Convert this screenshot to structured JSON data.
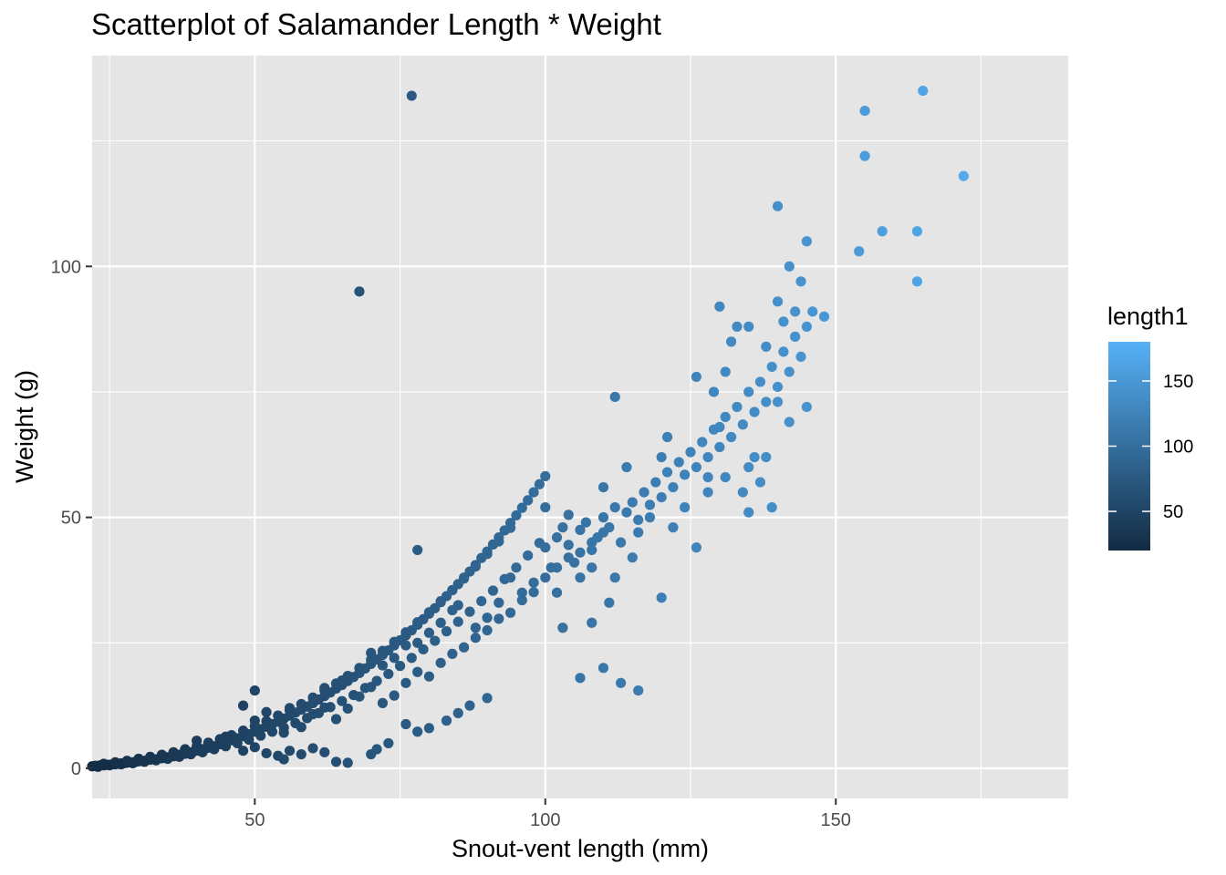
{
  "chart_data": {
    "type": "scatter",
    "title": "Scatterplot of Salamander Length * Weight",
    "xlabel": "Snout-vent length (mm)",
    "ylabel": "Weight (g)",
    "xlim": [
      22,
      190
    ],
    "ylim": [
      -6,
      142
    ],
    "x_ticks": [
      50,
      100,
      150
    ],
    "y_ticks": [
      0,
      50,
      100
    ],
    "x_tick_labels": [
      "50",
      "100",
      "150"
    ],
    "y_tick_labels": [
      "0",
      "50",
      "100"
    ],
    "grid": true,
    "panel_background": "#e5e5e5",
    "grid_color": "#ffffff",
    "legend": {
      "title": "length1",
      "position": "right",
      "range": [
        20,
        180
      ],
      "ticks": [
        50,
        100,
        150
      ],
      "tick_labels": [
        "50",
        "100",
        "150"
      ],
      "color_low": "#132b43",
      "color_high": "#56b1f7"
    },
    "points": [
      [
        22,
        0.4
      ],
      [
        22.5,
        0.5
      ],
      [
        23,
        0.5
      ],
      [
        23.5,
        0.6
      ],
      [
        24,
        0.6
      ],
      [
        24.5,
        0.7
      ],
      [
        25,
        0.7
      ],
      [
        25.5,
        0.8
      ],
      [
        26,
        0.8
      ],
      [
        26.5,
        0.9
      ],
      [
        27,
        1.0
      ],
      [
        27.5,
        1.0
      ],
      [
        28,
        1.1
      ],
      [
        28.5,
        1.2
      ],
      [
        29,
        1.2
      ],
      [
        29.5,
        1.3
      ],
      [
        30,
        1.4
      ],
      [
        31,
        1.5
      ],
      [
        32,
        1.7
      ],
      [
        33,
        1.8
      ],
      [
        34,
        2.0
      ],
      [
        35,
        2.2
      ],
      [
        36,
        2.4
      ],
      [
        37,
        2.7
      ],
      [
        38,
        2.9
      ],
      [
        39,
        3.2
      ],
      [
        40,
        3.5
      ],
      [
        41,
        3.8
      ],
      [
        42,
        4.1
      ],
      [
        43,
        4.4
      ],
      [
        44,
        4.8
      ],
      [
        45,
        5.2
      ],
      [
        46,
        5.6
      ],
      [
        47,
        6.0
      ],
      [
        48,
        6.4
      ],
      [
        49,
        6.8
      ],
      [
        50,
        7.3
      ],
      [
        51,
        7.8
      ],
      [
        52,
        8.3
      ],
      [
        53,
        8.8
      ],
      [
        54,
        9.3
      ],
      [
        55,
        9.9
      ],
      [
        56,
        10.5
      ],
      [
        57,
        11.1
      ],
      [
        58,
        11.7
      ],
      [
        59,
        12.3
      ],
      [
        60,
        13.0
      ],
      [
        61,
        13.7
      ],
      [
        62,
        14.4
      ],
      [
        63,
        15.1
      ],
      [
        64,
        15.9
      ],
      [
        65,
        16.6
      ],
      [
        66,
        17.4
      ],
      [
        67,
        18.2
      ],
      [
        68,
        19.0
      ],
      [
        69,
        19.9
      ],
      [
        70,
        20.8
      ],
      [
        71,
        21.7
      ],
      [
        72,
        22.6
      ],
      [
        73,
        23.5
      ],
      [
        74,
        24.5
      ],
      [
        75,
        25.5
      ],
      [
        76,
        26.5
      ],
      [
        77,
        27.5
      ],
      [
        78,
        28.6
      ],
      [
        79,
        29.7
      ],
      [
        80,
        30.8
      ],
      [
        81,
        31.9
      ],
      [
        82,
        33.1
      ],
      [
        83,
        34.3
      ],
      [
        84,
        35.5
      ],
      [
        85,
        36.7
      ],
      [
        86,
        38.0
      ],
      [
        87,
        39.2
      ],
      [
        88,
        40.5
      ],
      [
        89,
        41.9
      ],
      [
        90,
        43.2
      ],
      [
        91,
        44.6
      ],
      [
        92,
        46.0
      ],
      [
        93,
        47.4
      ],
      [
        94,
        48.9
      ],
      [
        95,
        50.4
      ],
      [
        96,
        51.9
      ],
      [
        97,
        53.4
      ],
      [
        98,
        55.0
      ],
      [
        99,
        56.6
      ],
      [
        100,
        58.2
      ],
      [
        23,
        0.3
      ],
      [
        25,
        0.6
      ],
      [
        27,
        0.8
      ],
      [
        29,
        1.0
      ],
      [
        31,
        1.3
      ],
      [
        33,
        1.6
      ],
      [
        35,
        1.9
      ],
      [
        37,
        2.3
      ],
      [
        39,
        2.8
      ],
      [
        41,
        3.2
      ],
      [
        43,
        3.8
      ],
      [
        45,
        4.4
      ],
      [
        47,
        5.0
      ],
      [
        49,
        5.7
      ],
      [
        51,
        6.5
      ],
      [
        53,
        7.3
      ],
      [
        55,
        8.1
      ],
      [
        57,
        9.0
      ],
      [
        59,
        10.0
      ],
      [
        61,
        11.0
      ],
      [
        63,
        12.2
      ],
      [
        65,
        13.4
      ],
      [
        67,
        14.6
      ],
      [
        69,
        16.0
      ],
      [
        71,
        17.4
      ],
      [
        73,
        18.8
      ],
      [
        75,
        20.4
      ],
      [
        77,
        22.0
      ],
      [
        79,
        23.7
      ],
      [
        81,
        25.4
      ],
      [
        83,
        27.3
      ],
      [
        85,
        29.2
      ],
      [
        87,
        31.2
      ],
      [
        89,
        33.3
      ],
      [
        91,
        35.4
      ],
      [
        93,
        37.7
      ],
      [
        95,
        40.0
      ],
      [
        97,
        42.4
      ],
      [
        99,
        44.9
      ],
      [
        24,
        0.9
      ],
      [
        26,
        1.2
      ],
      [
        28,
        1.5
      ],
      [
        30,
        1.9
      ],
      [
        32,
        2.3
      ],
      [
        34,
        2.7
      ],
      [
        36,
        3.2
      ],
      [
        38,
        3.8
      ],
      [
        40,
        4.4
      ],
      [
        42,
        5.1
      ],
      [
        44,
        5.8
      ],
      [
        46,
        6.6
      ],
      [
        48,
        7.5
      ],
      [
        50,
        8.4
      ],
      [
        52,
        9.4
      ],
      [
        54,
        10.5
      ],
      [
        56,
        11.6
      ],
      [
        58,
        12.8
      ],
      [
        60,
        14.1
      ],
      [
        62,
        15.5
      ],
      [
        64,
        16.9
      ],
      [
        66,
        18.4
      ],
      [
        68,
        20.0
      ],
      [
        70,
        21.6
      ],
      [
        72,
        23.4
      ],
      [
        74,
        25.2
      ],
      [
        76,
        27.1
      ],
      [
        78,
        29.1
      ],
      [
        80,
        31.1
      ],
      [
        82,
        33.3
      ],
      [
        84,
        35.5
      ],
      [
        86,
        37.8
      ],
      [
        88,
        40.2
      ],
      [
        90,
        42.7
      ],
      [
        92,
        45.2
      ],
      [
        94,
        47.9
      ],
      [
        40,
        5.5
      ],
      [
        45,
        6.3
      ],
      [
        50,
        9.5
      ],
      [
        52,
        11.2
      ],
      [
        55,
        7.1
      ],
      [
        58,
        8.2
      ],
      [
        60,
        10.8
      ],
      [
        62,
        12.1
      ],
      [
        64,
        9.8
      ],
      [
        66,
        11.9
      ],
      [
        68,
        14.3
      ],
      [
        70,
        16.2
      ],
      [
        72,
        13.0
      ],
      [
        74,
        14.5
      ],
      [
        76,
        17.0
      ],
      [
        78,
        19.2
      ],
      [
        80,
        18.3
      ],
      [
        82,
        21.0
      ],
      [
        84,
        22.8
      ],
      [
        86,
        24.1
      ],
      [
        88,
        26.0
      ],
      [
        90,
        27.5
      ],
      [
        92,
        29.8
      ],
      [
        94,
        31.0
      ],
      [
        96,
        33.5
      ],
      [
        98,
        35.1
      ],
      [
        48,
        3.5
      ],
      [
        50,
        4.2
      ],
      [
        52,
        3.0
      ],
      [
        54,
        2.5
      ],
      [
        55,
        1.8
      ],
      [
        56,
        3.5
      ],
      [
        58,
        2.8
      ],
      [
        60,
        4.0
      ],
      [
        62,
        3.2
      ],
      [
        64,
        1.3
      ],
      [
        66,
        1.1
      ],
      [
        70,
        2.8
      ],
      [
        71,
        3.8
      ],
      [
        73,
        5.0
      ],
      [
        76,
        8.8
      ],
      [
        78,
        7.3
      ],
      [
        80,
        8.0
      ],
      [
        83,
        9.5
      ],
      [
        85,
        11.0
      ],
      [
        87,
        12.5
      ],
      [
        90,
        14.0
      ],
      [
        48,
        12.5
      ],
      [
        50,
        15.5
      ],
      [
        56,
        12.0
      ],
      [
        60,
        13.0
      ],
      [
        62,
        16.0
      ],
      [
        65,
        17.5
      ],
      [
        68,
        19.0
      ],
      [
        70,
        23.0
      ],
      [
        72,
        20.5
      ],
      [
        74,
        22.0
      ],
      [
        76,
        24.5
      ],
      [
        78,
        25.0
      ],
      [
        80,
        27.0
      ],
      [
        82,
        29.0
      ],
      [
        84,
        31.5
      ],
      [
        85,
        32.5
      ],
      [
        88,
        28.0
      ],
      [
        90,
        30.0
      ],
      [
        92,
        33.0
      ],
      [
        94,
        38.0
      ],
      [
        96,
        35.0
      ],
      [
        98,
        37.0
      ],
      [
        100,
        38.0
      ],
      [
        102,
        40.0
      ],
      [
        104,
        42.0
      ],
      [
        106,
        43.0
      ],
      [
        108,
        45.0
      ],
      [
        110,
        47.0
      ],
      [
        100,
        44.0
      ],
      [
        101,
        40.0
      ],
      [
        102,
        46.0
      ],
      [
        103,
        48.0
      ],
      [
        104,
        44.5
      ],
      [
        105,
        41.0
      ],
      [
        106,
        47.5
      ],
      [
        107,
        49.0
      ],
      [
        108,
        43.5
      ],
      [
        109,
        46.0
      ],
      [
        110,
        50.0
      ],
      [
        111,
        48.0
      ],
      [
        112,
        52.0
      ],
      [
        113,
        45.0
      ],
      [
        114,
        51.0
      ],
      [
        115,
        53.0
      ],
      [
        116,
        49.5
      ],
      [
        117,
        55.0
      ],
      [
        118,
        52.5
      ],
      [
        119,
        57.0
      ],
      [
        120,
        54.0
      ],
      [
        121,
        59.0
      ],
      [
        122,
        56.0
      ],
      [
        123,
        61.0
      ],
      [
        124,
        58.5
      ],
      [
        125,
        63.0
      ],
      [
        126,
        60.0
      ],
      [
        127,
        65.0
      ],
      [
        128,
        62.0
      ],
      [
        129,
        67.5
      ],
      [
        130,
        64.0
      ],
      [
        131,
        70.0
      ],
      [
        132,
        66.0
      ],
      [
        133,
        72.0
      ],
      [
        134,
        68.5
      ],
      [
        135,
        75.0
      ],
      [
        136,
        71.0
      ],
      [
        137,
        77.0
      ],
      [
        138,
        73.0
      ],
      [
        139,
        80.0
      ],
      [
        140,
        76.0
      ],
      [
        141,
        83.0
      ],
      [
        142,
        79.0
      ],
      [
        143,
        86.0
      ],
      [
        144,
        82.0
      ],
      [
        145,
        88.0
      ],
      [
        100,
        52.0
      ],
      [
        102,
        35.0
      ],
      [
        104,
        50.5
      ],
      [
        106,
        38.0
      ],
      [
        108,
        40.0
      ],
      [
        110,
        56.0
      ],
      [
        112,
        38.0
      ],
      [
        114,
        60.0
      ],
      [
        115,
        42.0
      ],
      [
        116,
        47.0
      ],
      [
        118,
        50.0
      ],
      [
        120,
        62.0
      ],
      [
        120,
        34.0
      ],
      [
        121,
        66.0
      ],
      [
        122,
        48.0
      ],
      [
        124,
        52.0
      ],
      [
        126,
        44.0
      ],
      [
        126,
        78.0
      ],
      [
        128,
        55.0
      ],
      [
        128,
        58.0
      ],
      [
        130,
        92.0
      ],
      [
        130,
        68.0
      ],
      [
        131,
        58.0
      ],
      [
        132,
        85.0
      ],
      [
        133,
        88.0
      ],
      [
        134,
        55.0
      ],
      [
        135,
        60.0
      ],
      [
        135,
        51.0
      ],
      [
        136,
        62.0
      ],
      [
        137,
        57.0
      ],
      [
        138,
        84.0
      ],
      [
        139,
        52.0
      ],
      [
        140,
        93.0
      ],
      [
        140,
        73.0
      ],
      [
        141,
        89.0
      ],
      [
        142,
        69.0
      ],
      [
        143,
        91.0
      ],
      [
        144,
        97.0
      ],
      [
        145,
        72.0
      ],
      [
        146,
        91.0
      ],
      [
        148,
        90.0
      ],
      [
        138,
        62.0
      ],
      [
        135,
        88.0
      ],
      [
        131,
        79.0
      ],
      [
        129,
        75.0
      ],
      [
        106,
        18.0
      ],
      [
        110,
        20.0
      ],
      [
        113,
        17.0
      ],
      [
        116,
        15.5
      ],
      [
        103,
        28.0
      ],
      [
        108,
        29.0
      ],
      [
        111,
        33.0
      ],
      [
        112,
        74.0
      ],
      [
        140,
        112.0
      ],
      [
        145,
        105.0
      ],
      [
        142,
        100.0
      ],
      [
        155,
        131.0
      ],
      [
        155,
        122.0
      ],
      [
        165,
        135.0
      ],
      [
        172,
        118.0
      ],
      [
        158,
        107.0
      ],
      [
        164,
        107.0
      ],
      [
        154,
        103.0
      ],
      [
        164,
        97.0
      ],
      [
        77,
        134.0
      ],
      [
        68,
        95.0
      ],
      [
        78,
        43.5
      ]
    ]
  }
}
